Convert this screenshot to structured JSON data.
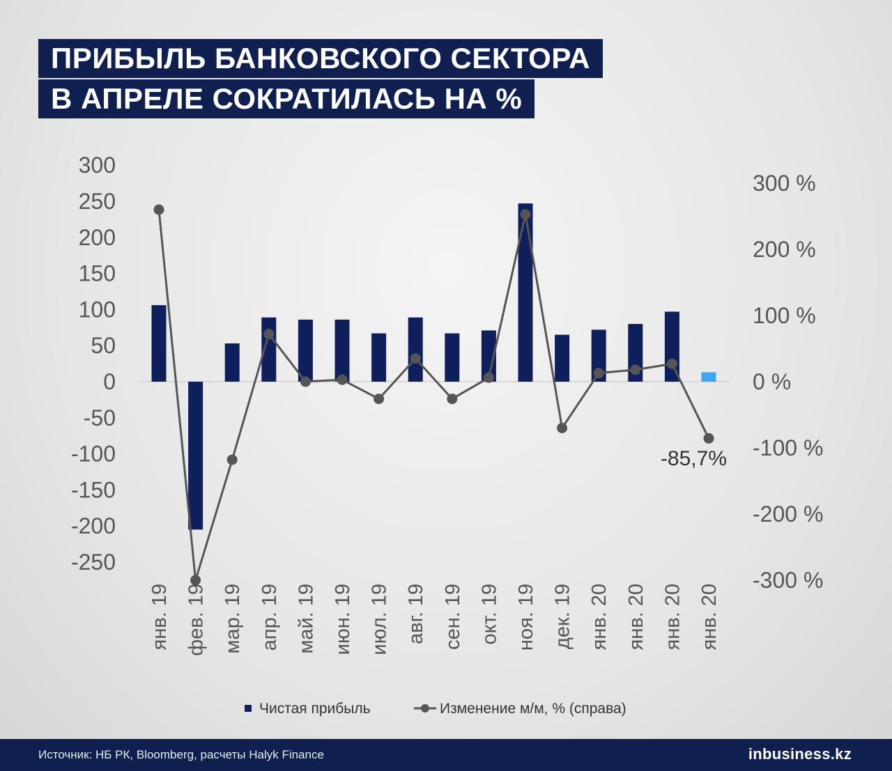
{
  "header": {
    "title_line1": "ПРИБЫЛЬ БАНКОВСКОГО СЕКТОРА",
    "title_line2": "В АПРЕЛЕ СОКРАТИЛАСЬ НА %"
  },
  "footer": {
    "source": "Источник: НБ РК, Bloomberg, расчеты  Halyk Finance",
    "logo": "inbusiness.kz"
  },
  "colors": {
    "bar": "#0f1f5c",
    "bar_highlight": "#3aa7f0",
    "line": "#555555",
    "axis_text": "#555555",
    "header_bg": "#0f1f4f"
  },
  "chart_data": {
    "type": "bar",
    "categories": [
      "янв. 19",
      "фев. 19",
      "мар. 19",
      "апр. 19",
      "май. 19",
      "июн. 19",
      "июл. 19",
      "авг. 19",
      "сен. 19",
      "окт. 19",
      "ноя. 19",
      "дек. 19",
      "янв. 20",
      "янв. 20",
      "янв. 20",
      "янв. 20"
    ],
    "series": [
      {
        "name": "Чистая прибыль",
        "type": "bar",
        "axis": "left",
        "values": [
          106,
          -205,
          53,
          89,
          86,
          86,
          67,
          89,
          67,
          71,
          247,
          65,
          72,
          80,
          97,
          13
        ]
      },
      {
        "name": "Изменение м/м, % (справа)",
        "type": "line",
        "axis": "right",
        "values": [
          260,
          -300,
          -118,
          72,
          0,
          3,
          -26,
          35,
          -26,
          6,
          253,
          -70,
          13,
          18,
          27,
          -85.7
        ]
      }
    ],
    "y_left": {
      "ticks": [
        "300",
        "250",
        "200",
        "150",
        "100",
        "50",
        "0",
        "-50",
        "-100",
        "-150",
        "-200",
        "-250"
      ],
      "range": [
        -250,
        300
      ]
    },
    "y_right": {
      "ticks": [
        "300 %",
        "200 %",
        "100 %",
        "0 %",
        "-100 %",
        "-200 %",
        "-300 %"
      ],
      "range": [
        -300,
        300
      ]
    },
    "annotations": [
      {
        "text": "-85,7%",
        "index": 15
      }
    ],
    "highlight_index": 15,
    "legend_position": "bottom",
    "grid": false
  }
}
